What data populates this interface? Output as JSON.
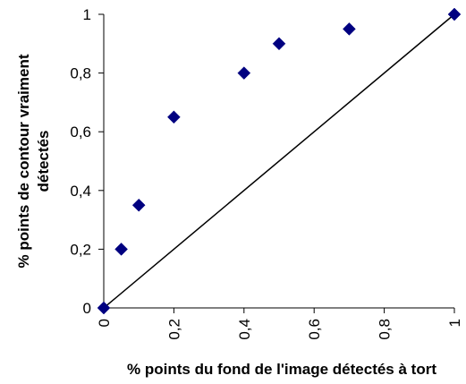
{
  "chart_data": {
    "type": "scatter",
    "title": "",
    "xlabel": "% points du fond de l'image détectés à tort",
    "ylabel_lines": [
      "% points de contour vraiment",
      "détectés"
    ],
    "xlim": [
      0,
      1
    ],
    "ylim": [
      0,
      1
    ],
    "x_ticks": [
      0,
      0.2,
      0.4,
      0.6,
      0.8,
      1
    ],
    "x_tick_labels": [
      "0",
      "0,2",
      "0,4",
      "0,6",
      "0,8",
      "1"
    ],
    "y_ticks": [
      0,
      0.2,
      0.4,
      0.6,
      0.8,
      1
    ],
    "y_tick_labels": [
      "0",
      "0,2",
      "0,4",
      "0,6",
      "0,8",
      "1"
    ],
    "grid": false,
    "legend": "none",
    "series": [
      {
        "type": "scatter",
        "marker": "diamond",
        "color": "#000080",
        "x": [
          0,
          0.05,
          0.1,
          0.2,
          0.4,
          0.5,
          0.7,
          1
        ],
        "y": [
          0,
          0.2,
          0.35,
          0.65,
          0.8,
          0.9,
          0.95,
          1
        ]
      },
      {
        "type": "line",
        "color": "#000000",
        "x": [
          0,
          1
        ],
        "y": [
          0,
          1
        ]
      }
    ]
  }
}
